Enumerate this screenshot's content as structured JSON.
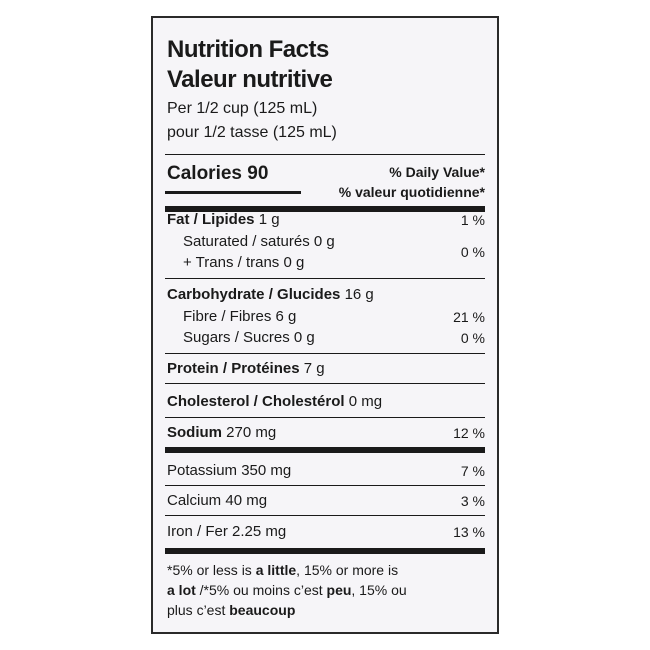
{
  "header": {
    "title_en": "Nutrition Facts",
    "title_fr": "Valeur nutritive",
    "serving_en": "Per 1/2 cup (125 mL)",
    "serving_fr": "pour 1/2 tasse (125 mL)"
  },
  "calories": {
    "label": "Calories",
    "value": "90"
  },
  "daily_value": {
    "en": "% Daily Value*",
    "fr": "% valeur quotidienne*"
  },
  "rows": {
    "fat": {
      "label_en": "Fat",
      "sep": " / ",
      "label_fr": "Lipides",
      "amount": "1 g",
      "pct": "1 %"
    },
    "saturated": {
      "label": "Saturated / saturés",
      "amount": "0 g"
    },
    "trans": {
      "label": "+ Trans / trans",
      "amount": "0 g"
    },
    "sat_trans_pct": "0 %",
    "carb": {
      "label_en": "Carbohydrate",
      "sep": " / ",
      "label_fr": "Glucides",
      "amount": "16 g"
    },
    "fibre": {
      "label": "Fibre / Fibres",
      "amount": "6 g",
      "pct": "21 %"
    },
    "sugars": {
      "label": "Sugars / Sucres",
      "amount": "0 g",
      "pct": "0 %"
    },
    "protein": {
      "label_en": "Protein",
      "sep": " / ",
      "label_fr": "Protéines",
      "amount": "7 g"
    },
    "cholesterol": {
      "label_en": "Cholesterol",
      "sep": " / ",
      "label_fr": "Cholestérol",
      "amount": "0 mg"
    },
    "sodium": {
      "label": "Sodium",
      "amount": "270 mg",
      "pct": "12 %"
    },
    "potassium": {
      "label": "Potassium",
      "amount": "350 mg",
      "pct": "7 %"
    },
    "calcium": {
      "label": "Calcium",
      "amount": "40 mg",
      "pct": "3 %"
    },
    "iron": {
      "label": "Iron / Fer",
      "amount": "2.25 mg",
      "pct": "13 %"
    }
  },
  "footnote": {
    "p1": "*5% or less is ",
    "b1": "a little",
    "p2": ", 15% or more is",
    "b2": "a lot",
    "p3": " /*5% ou moins c’est ",
    "b3": "peu",
    "p4": ", 15% ou",
    "p5": "plus c’est ",
    "b4": "beaucoup"
  }
}
